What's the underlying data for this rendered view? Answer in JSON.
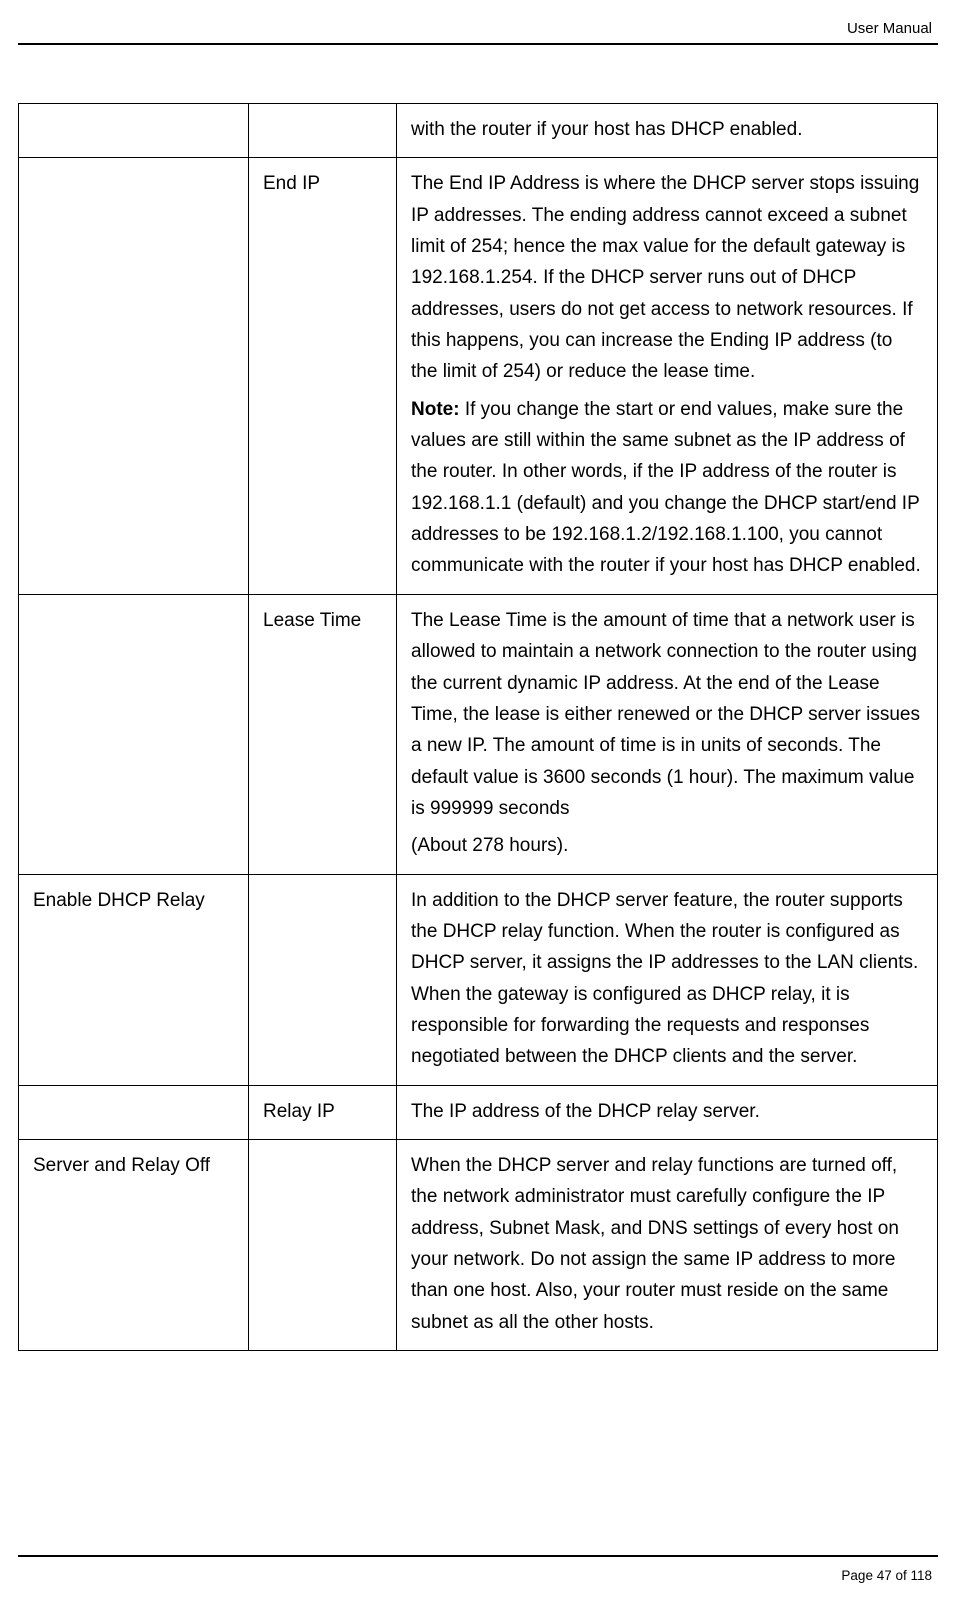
{
  "header": {
    "title": "User Manual"
  },
  "footer": {
    "text": "Page 47 of 118"
  },
  "rows": {
    "r0": {
      "c3": "with the router if your host has DHCP enabled."
    },
    "r1": {
      "c2": "End IP",
      "c3a": "The End IP Address is where the DHCP server stops issuing IP addresses. The ending address cannot exceed a subnet limit of 254; hence the max value for the default gateway is 192.168.1.254. If the DHCP server runs out of DHCP addresses, users do not get access to network resources. If this happens, you can increase the Ending IP address (to the limit of 254) or reduce the lease time.",
      "c3_note_label": "Note:",
      "c3b": " If you change the start or end values, make sure the values are still within the same subnet as the IP address of the router. In other words, if the IP address of the router is 192.168.1.1 (default) and you change the DHCP start/end IP addresses to be 192.168.1.2/192.168.1.100, you cannot communicate with the router if your host has DHCP enabled."
    },
    "r2": {
      "c2": "Lease Time",
      "c3a": "The Lease Time is the amount of time that a network user is allowed to maintain a network connection to the router using the current dynamic IP address. At the end of the Lease Time, the lease is either renewed or the DHCP server issues a new IP. The amount of time is in units of seconds. The default value is 3600 seconds (1 hour). The maximum value is 999999 seconds",
      "c3b": "(About 278 hours)."
    },
    "r3": {
      "c1": "Enable DHCP Relay",
      "c3": "In addition to the DHCP server feature, the router supports the DHCP relay function. When the router is configured as DHCP server, it assigns the IP addresses to the LAN clients. When the gateway is configured as DHCP relay, it is responsible for forwarding the requests and responses negotiated between the DHCP clients and the server."
    },
    "r4": {
      "c2": "Relay IP",
      "c3": "The IP address of the DHCP relay server."
    },
    "r5": {
      "c1": "Server and Relay Off",
      "c3": "When the DHCP server and relay functions are turned off, the network administrator must carefully configure the IP address, Subnet Mask, and DNS settings of every host on your network. Do not assign the same IP address to more than one host. Also, your router must reside on the same subnet as all the other hosts."
    }
  }
}
